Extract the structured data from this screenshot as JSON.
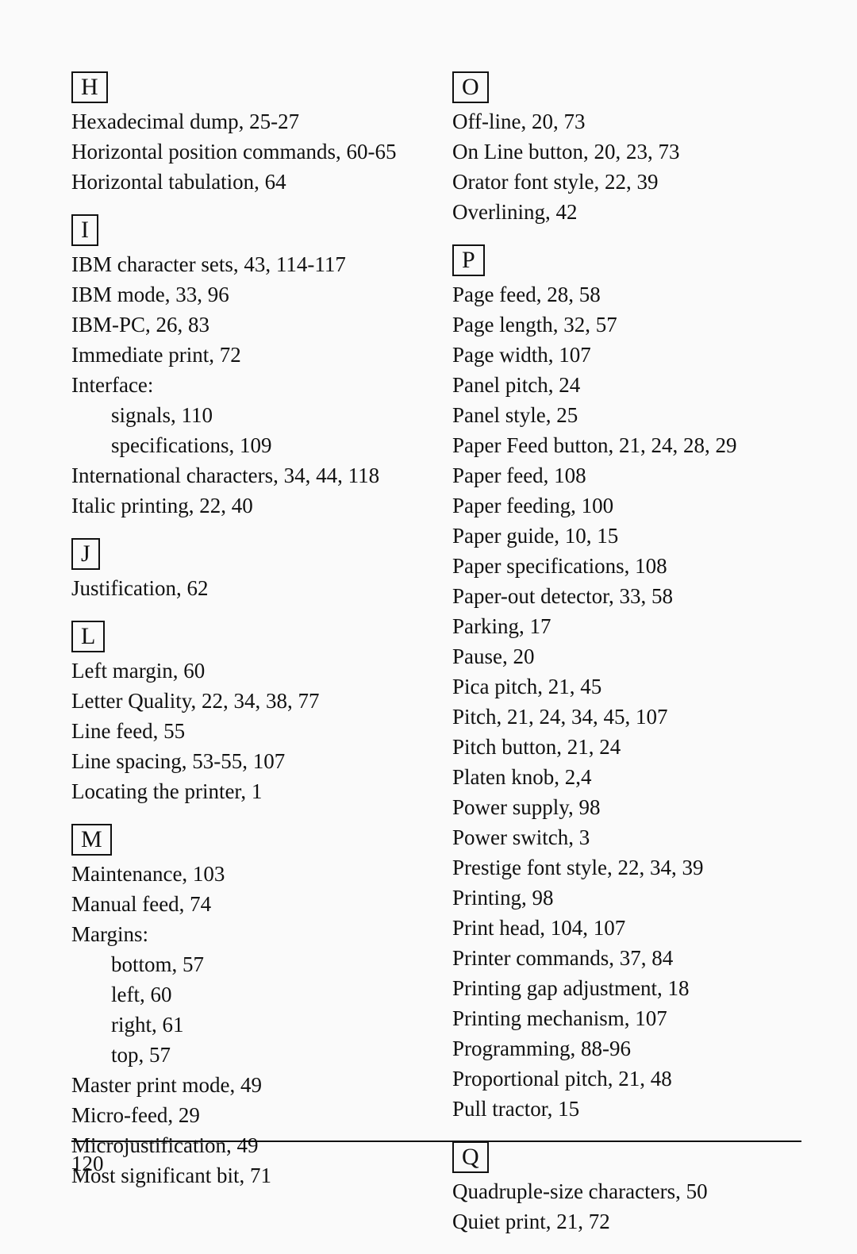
{
  "page_number": "120",
  "left_column": [
    {
      "letter": "H",
      "entries": [
        {
          "text": "Hexadecimal dump, 25-27"
        },
        {
          "text": "Horizontal position commands, 60-65"
        },
        {
          "text": "Horizontal tabulation, 64"
        }
      ]
    },
    {
      "letter": "I",
      "entries": [
        {
          "text": "IBM character sets, 43, 114-117"
        },
        {
          "text": "IBM mode, 33, 96"
        },
        {
          "text": "IBM-PC, 26, 83"
        },
        {
          "text": "Immediate print, 72"
        },
        {
          "text": "Interface:"
        },
        {
          "text": "signals, 110",
          "indent": true
        },
        {
          "text": "specifications, 109",
          "indent": true
        },
        {
          "text": "International characters, 34, 44, 118"
        },
        {
          "text": "Italic printing, 22, 40"
        }
      ]
    },
    {
      "letter": "J",
      "entries": [
        {
          "text": "Justification, 62"
        }
      ]
    },
    {
      "letter": "L",
      "entries": [
        {
          "text": "Left margin, 60"
        },
        {
          "text": "Letter Quality, 22, 34, 38, 77"
        },
        {
          "text": "Line feed, 55"
        },
        {
          "text": "Line spacing, 53-55, 107"
        },
        {
          "text": "Locating the printer, 1"
        }
      ]
    },
    {
      "letter": "M",
      "entries": [
        {
          "text": "Maintenance, 103"
        },
        {
          "text": "Manual feed, 74"
        },
        {
          "text": "Margins:"
        },
        {
          "text": "bottom, 57",
          "indent": true
        },
        {
          "text": "left, 60",
          "indent": true
        },
        {
          "text": "right, 61",
          "indent": true
        },
        {
          "text": "top, 57",
          "indent": true
        },
        {
          "text": "Master print mode, 49"
        },
        {
          "text": "Micro-feed, 29"
        },
        {
          "text": "Microjustification, 49"
        },
        {
          "text": "Most significant bit, 71"
        }
      ]
    }
  ],
  "right_column": [
    {
      "letter": "O",
      "entries": [
        {
          "text": "Off-line, 20, 73"
        },
        {
          "text": "On Line button, 20, 23, 73"
        },
        {
          "text": "Orator font style, 22, 39"
        },
        {
          "text": "Overlining, 42"
        }
      ]
    },
    {
      "letter": "P",
      "entries": [
        {
          "text": "Page feed, 28, 58"
        },
        {
          "text": "Page length, 32, 57"
        },
        {
          "text": "Page width, 107"
        },
        {
          "text": "Panel pitch, 24"
        },
        {
          "text": "Panel style, 25"
        },
        {
          "text": "Paper Feed button, 21, 24, 28, 29"
        },
        {
          "text": "Paper feed, 108"
        },
        {
          "text": "Paper feeding, 100"
        },
        {
          "text": "Paper guide, 10, 15"
        },
        {
          "text": "Paper specifications, 108"
        },
        {
          "text": "Paper-out detector, 33, 58"
        },
        {
          "text": "Parking, 17"
        },
        {
          "text": "Pause, 20"
        },
        {
          "text": "Pica pitch, 21, 45"
        },
        {
          "text": "Pitch, 21, 24, 34, 45, 107"
        },
        {
          "text": "Pitch button, 21, 24"
        },
        {
          "text": "Platen knob, 2,4"
        },
        {
          "text": "Power supply, 98"
        },
        {
          "text": "Power switch, 3"
        },
        {
          "text": "Prestige font style, 22, 34, 39"
        },
        {
          "text": "Printing, 98"
        },
        {
          "text": "Print head, 104, 107"
        },
        {
          "text": "Printer commands, 37, 84"
        },
        {
          "text": "Printing gap adjustment, 18"
        },
        {
          "text": "Printing mechanism, 107"
        },
        {
          "text": "Programming, 88-96"
        },
        {
          "text": "Proportional pitch, 21, 48"
        },
        {
          "text": "Pull tractor, 15"
        }
      ]
    },
    {
      "letter": "Q",
      "entries": [
        {
          "text": "Quadruple-size characters, 50"
        },
        {
          "text": "Quiet print, 21, 72"
        }
      ]
    }
  ]
}
